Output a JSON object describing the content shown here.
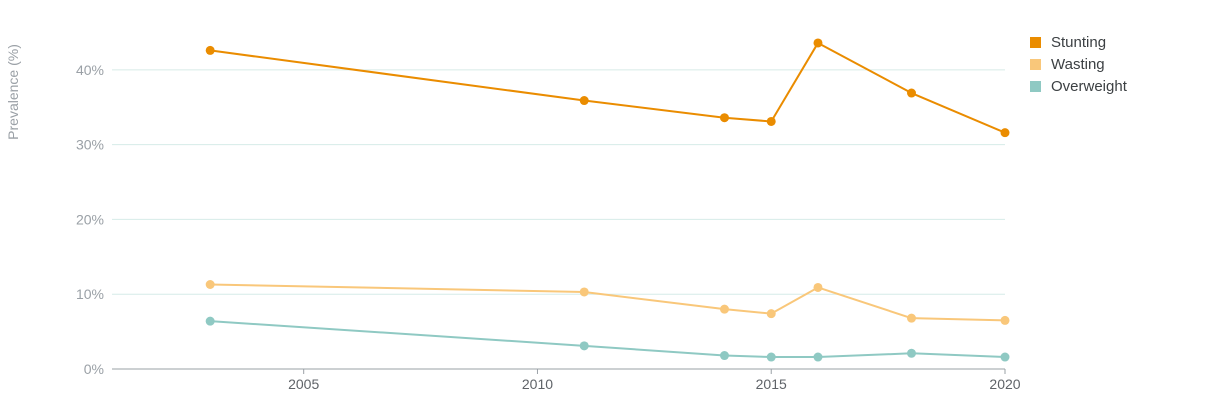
{
  "chart_data": {
    "type": "line",
    "title": "",
    "xlabel": "",
    "ylabel": "Prevalence (%)",
    "xlim": [
      2000.9,
      2020
    ],
    "ylim": [
      0,
      46
    ],
    "x_ticks": [
      2005,
      2010,
      2015,
      2020
    ],
    "y_ticks": [
      0,
      10,
      20,
      30,
      40
    ],
    "y_tick_labels": [
      "0%",
      "10%",
      "20%",
      "30%",
      "40%"
    ],
    "grid": true,
    "legend_position": "top-right",
    "x": [
      2003,
      2011,
      2014,
      2015,
      2016,
      2018,
      2020
    ],
    "series": [
      {
        "name": "Stunting",
        "color": "#ea8c00",
        "values": [
          42.6,
          35.9,
          33.6,
          33.1,
          43.6,
          36.9,
          31.6
        ]
      },
      {
        "name": "Wasting",
        "color": "#f9c77a",
        "values": [
          11.3,
          10.3,
          8.0,
          7.4,
          10.9,
          6.8,
          6.5
        ]
      },
      {
        "name": "Overweight",
        "color": "#8fc9c3",
        "values": [
          6.4,
          3.1,
          1.8,
          1.6,
          1.6,
          2.1,
          1.6
        ]
      }
    ]
  }
}
